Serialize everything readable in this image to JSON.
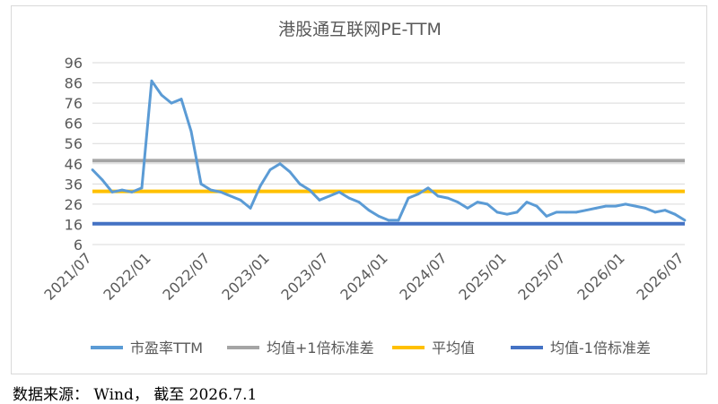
{
  "chart_data": {
    "type": "line",
    "title": "港股通互联网PE-TTM",
    "xlabel": "",
    "ylabel": "",
    "y_ticks": [
      "96",
      "86",
      "76",
      "66",
      "56",
      "46",
      "36",
      "26",
      "16",
      "6"
    ],
    "ylim": [
      6,
      96
    ],
    "x_ticks": [
      "2021/07",
      "2022/01",
      "2022/07",
      "2023/01",
      "2023/07",
      "2024/01",
      "2024/07",
      "2025/01",
      "2025/07",
      "2026/01",
      "2026/07"
    ],
    "grid": "horizontal",
    "legend_position": "bottom",
    "series": [
      {
        "name": "市盈率TTM",
        "color": "#5b9bd5",
        "x": [
          "2021/07",
          "2021/08",
          "2021/09",
          "2021/10",
          "2021/11",
          "2021/12",
          "2022/01",
          "2022/02",
          "2022/03",
          "2022/04",
          "2022/05",
          "2022/06",
          "2022/07",
          "2022/08",
          "2022/09",
          "2022/10",
          "2022/11",
          "2022/12",
          "2023/01",
          "2023/02",
          "2023/03",
          "2023/04",
          "2023/05",
          "2023/06",
          "2023/07",
          "2023/08",
          "2023/09",
          "2023/10",
          "2023/11",
          "2023/12",
          "2024/01",
          "2024/02",
          "2024/03",
          "2024/04",
          "2024/05",
          "2024/06",
          "2024/07",
          "2024/08",
          "2024/09",
          "2024/10",
          "2024/11",
          "2024/12",
          "2025/01",
          "2025/02",
          "2025/03",
          "2025/04",
          "2025/05",
          "2025/06",
          "2025/07",
          "2025/08",
          "2025/09",
          "2025/10",
          "2025/11",
          "2025/12",
          "2026/01",
          "2026/02",
          "2026/03",
          "2026/04",
          "2026/05",
          "2026/06",
          "2026/07"
        ],
        "values": [
          43,
          38,
          32,
          33,
          32,
          34,
          87,
          80,
          76,
          78,
          62,
          36,
          33,
          32,
          30,
          28,
          24,
          35,
          43,
          46,
          42,
          36,
          33,
          28,
          30,
          32,
          29,
          27,
          23,
          20,
          18,
          18,
          29,
          31,
          34,
          30,
          29,
          27,
          24,
          27,
          26,
          22,
          21,
          22,
          27,
          25,
          20,
          22,
          22,
          22,
          23,
          24,
          25,
          25,
          26,
          25,
          24,
          22,
          23,
          21,
          18
        ]
      },
      {
        "name": "均值+1倍标准差",
        "color": "#a5a5a5",
        "constant": 47.5
      },
      {
        "name": "平均值",
        "color": "#ffc000",
        "constant": 32.3
      },
      {
        "name": "均值-1倍标准差",
        "color": "#4472c4",
        "constant": 16.3
      }
    ]
  },
  "source_note": "数据来源： Wind， 截至 2026.7.1"
}
